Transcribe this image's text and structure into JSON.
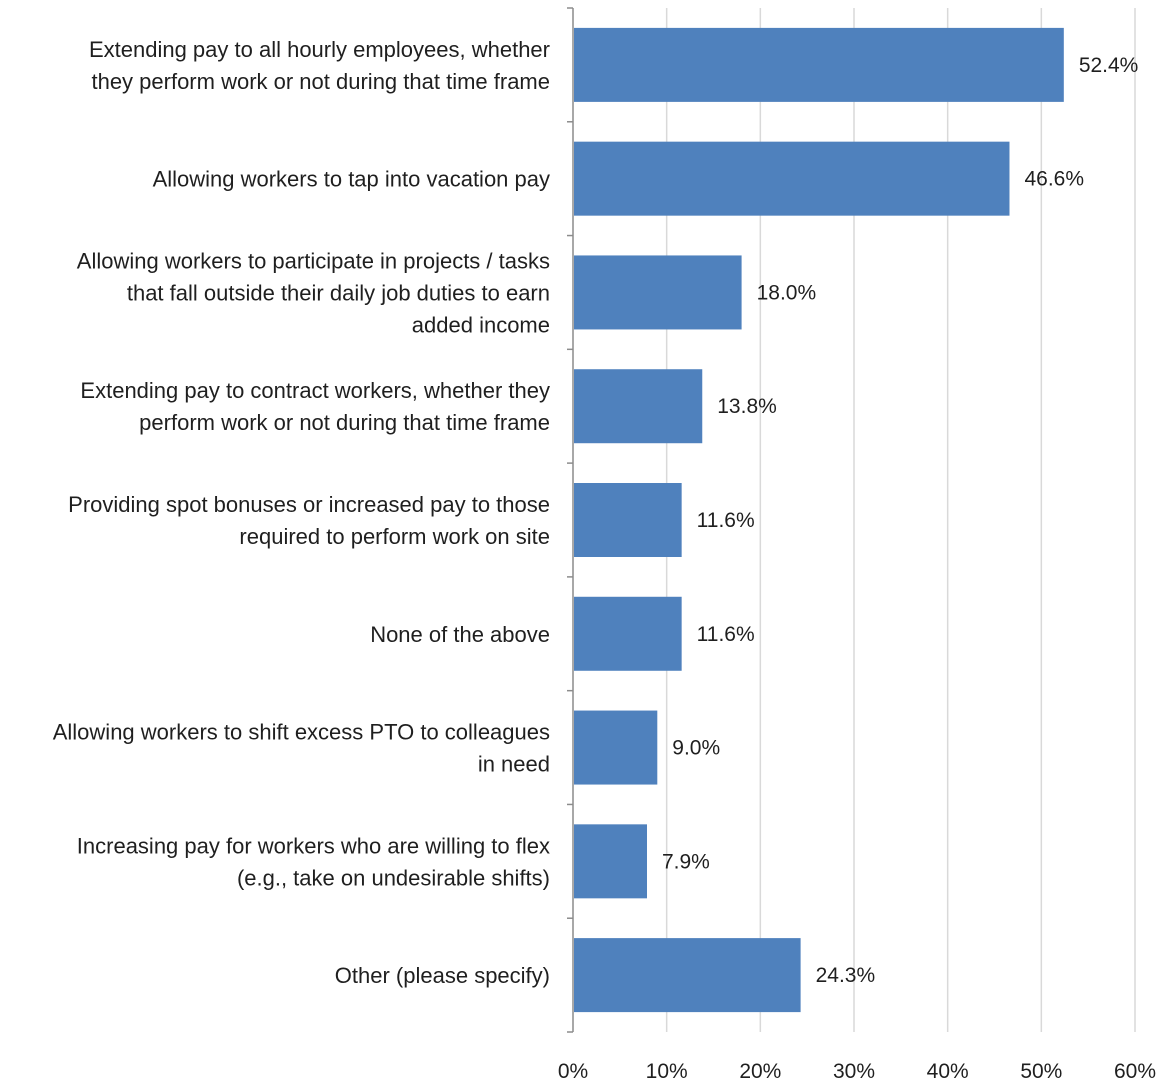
{
  "chart_data": {
    "type": "bar",
    "orientation": "horizontal",
    "title": "",
    "xlabel": "",
    "ylabel": "",
    "xlim": [
      0,
      60
    ],
    "x_ticks": [
      0,
      10,
      20,
      30,
      40,
      50,
      60
    ],
    "x_tick_labels": [
      "0%",
      "10%",
      "20%",
      "30%",
      "40%",
      "50%",
      "60%"
    ],
    "grid": "vertical",
    "legend": "none",
    "bar_color": "#4f81bd",
    "categories": [
      [
        "Extending pay to all hourly employees, whether",
        "they perform work or not during that time frame"
      ],
      [
        "Allowing workers to tap into vacation pay"
      ],
      [
        "Allowing workers to participate in projects / tasks",
        "that fall outside their daily job duties to earn",
        "added income"
      ],
      [
        "Extending pay to contract workers, whether they",
        "perform work or not during that time frame"
      ],
      [
        "Providing spot bonuses or increased pay to those",
        "required to perform work on site"
      ],
      [
        "None of the above"
      ],
      [
        "Allowing workers to shift excess PTO to colleagues",
        "in need"
      ],
      [
        "Increasing pay for workers who are willing to flex",
        "(e.g., take on undesirable shifts)"
      ],
      [
        "Other (please specify)"
      ]
    ],
    "values": [
      52.4,
      46.6,
      18.0,
      13.8,
      11.6,
      11.6,
      9.0,
      7.9,
      24.3
    ],
    "value_labels": [
      "52.4%",
      "46.6%",
      "18.0%",
      "13.8%",
      "11.6%",
      "11.6%",
      "9.0%",
      "7.9%",
      "24.3%"
    ]
  }
}
